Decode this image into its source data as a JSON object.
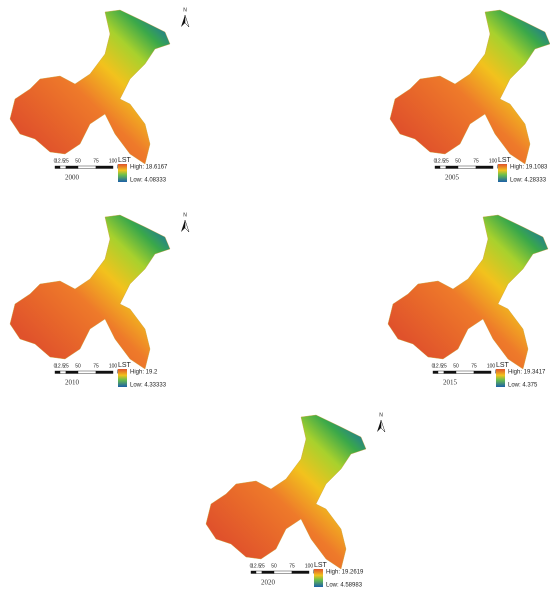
{
  "panels": [
    {
      "year": "2000",
      "legend_title": "LST",
      "high": "High: 18.6167",
      "low": "Low: 4.08333",
      "north": "N",
      "scale": [
        "0",
        "12.5",
        "25",
        "50",
        "75",
        "100"
      ],
      "unit": "km"
    },
    {
      "year": "2005",
      "legend_title": "LST",
      "high": "High: 19.1083",
      "low": "Low: 4.28333",
      "north": "N",
      "scale": [
        "0",
        "12.5",
        "25",
        "50",
        "75",
        "100"
      ],
      "unit": "km"
    },
    {
      "year": "2010",
      "legend_title": "LST",
      "high": "High: 19.2",
      "low": "Low: 4.33333",
      "north": "N",
      "scale": [
        "0",
        "12.5",
        "25",
        "50",
        "75",
        "100"
      ],
      "unit": "km"
    },
    {
      "year": "2015",
      "legend_title": "LST",
      "high": "High: 19.3417",
      "low": "Low: 4.375",
      "north": "N",
      "scale": [
        "0",
        "12.5",
        "25",
        "50",
        "75",
        "100"
      ],
      "unit": "km"
    },
    {
      "year": "2020",
      "legend_title": "LST",
      "high": "High: 19.2619",
      "low": "Low: 4.58983",
      "north": "N",
      "scale": [
        "0",
        "12.5",
        "25",
        "50",
        "75",
        "100"
      ],
      "unit": "km"
    }
  ]
}
